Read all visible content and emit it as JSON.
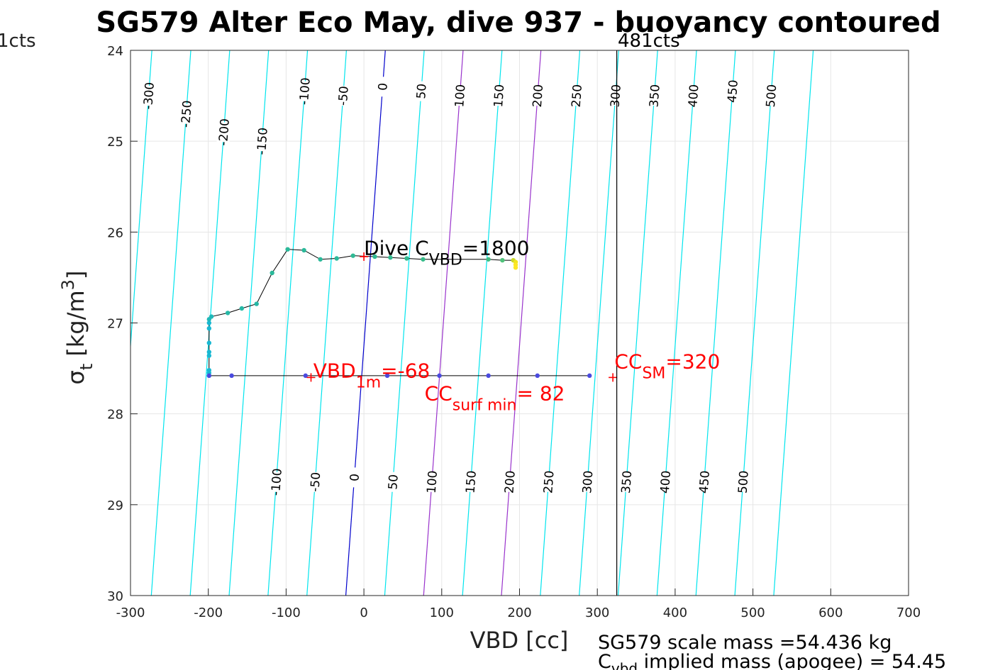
{
  "chart_data": {
    "type": "scatter",
    "title": "SG579 Alter Eco May, dive 937 - buoyancy contoured",
    "xlabel": "VBD [cc]",
    "ylabel": "σ t [kg/m 3]",
    "ylabel_parts": {
      "sym": "σ",
      "sub": "t",
      "unit": " [kg/m",
      "sup": "3",
      "close": "]"
    },
    "xlim": [
      -300,
      700
    ],
    "ylim": [
      24,
      30
    ],
    "y_reversed": true,
    "x_ticks": [
      -300,
      -200,
      -100,
      0,
      100,
      200,
      300,
      400,
      500,
      600,
      700
    ],
    "y_ticks": [
      24,
      25,
      26,
      27,
      28,
      29,
      30
    ],
    "grid": true,
    "contours": {
      "slope": 0.1182,
      "levels": [
        -350,
        -300,
        -250,
        -200,
        -150,
        -100,
        -50,
        0,
        50,
        100,
        150,
        200,
        250,
        300,
        350,
        400,
        450,
        500,
        550
      ],
      "highlight": {
        "0": "#0000cc",
        "100": "#9933cc",
        "200": "#9933cc"
      },
      "default_color": "#00e5ee",
      "top_labels": [
        {
          "level": -300,
          "text": "-300",
          "y": 24.5
        },
        {
          "level": -250,
          "text": "-250",
          "y": 24.7
        },
        {
          "level": -200,
          "text": "-200",
          "y": 24.9
        },
        {
          "level": -150,
          "text": "-150",
          "y": 25.0
        },
        {
          "level": -100,
          "text": "-100",
          "y": 24.45
        },
        {
          "level": -50,
          "text": "-50",
          "y": 24.5
        },
        {
          "level": 0,
          "text": "0",
          "y": 24.4
        },
        {
          "level": 50,
          "text": "50",
          "y": 24.45
        },
        {
          "level": 100,
          "text": "100",
          "y": 24.5
        },
        {
          "level": 150,
          "text": "150",
          "y": 24.5
        },
        {
          "level": 200,
          "text": "200",
          "y": 24.5
        },
        {
          "level": 250,
          "text": "250",
          "y": 24.5
        },
        {
          "level": 300,
          "text": "300",
          "y": 24.5
        },
        {
          "level": 350,
          "text": "350",
          "y": 24.5
        },
        {
          "level": 400,
          "text": "400",
          "y": 24.5
        },
        {
          "level": 450,
          "text": "450",
          "y": 24.45
        },
        {
          "level": 500,
          "text": "500",
          "y": 24.5
        }
      ],
      "bottom_labels": [
        {
          "level": -100,
          "text": "-100",
          "y": 28.75
        },
        {
          "level": -50,
          "text": "-50",
          "y": 28.75
        },
        {
          "level": 0,
          "text": "0",
          "y": 28.7
        },
        {
          "level": 50,
          "text": "50",
          "y": 28.75
        },
        {
          "level": 100,
          "text": "100",
          "y": 28.75
        },
        {
          "level": 150,
          "text": "150",
          "y": 28.75
        },
        {
          "level": 200,
          "text": "200",
          "y": 28.75
        },
        {
          "level": 250,
          "text": "250",
          "y": 28.75
        },
        {
          "level": 300,
          "text": "300",
          "y": 28.75
        },
        {
          "level": 350,
          "text": "350",
          "y": 28.75
        },
        {
          "level": 400,
          "text": "400",
          "y": 28.75
        },
        {
          "level": 450,
          "text": "450",
          "y": 28.75
        },
        {
          "level": 500,
          "text": "500",
          "y": 28.75
        }
      ]
    },
    "profile": {
      "line_color": "#000000",
      "points": [
        {
          "x": -199,
          "y": 27.58,
          "c": "#19b8d2"
        },
        {
          "x": -199,
          "y": 27.55,
          "c": "#19b8d2"
        },
        {
          "x": -199,
          "y": 27.52,
          "c": "#19b8d2"
        },
        {
          "x": -199,
          "y": 27.36,
          "c": "#19b8d2"
        },
        {
          "x": -199,
          "y": 27.32,
          "c": "#19b8d2"
        },
        {
          "x": -199,
          "y": 27.22,
          "c": "#19b8d2"
        },
        {
          "x": -199,
          "y": 27.06,
          "c": "#19b8d2"
        },
        {
          "x": -199,
          "y": 27.0,
          "c": "#19b8d2"
        },
        {
          "x": -199,
          "y": 26.96,
          "c": "#1fb8b8"
        },
        {
          "x": -196,
          "y": 26.93,
          "c": "#1fb8b8"
        },
        {
          "x": -175,
          "y": 26.89,
          "c": "#26b8a6"
        },
        {
          "x": -157,
          "y": 26.84,
          "c": "#26b8a6"
        },
        {
          "x": -138,
          "y": 26.79,
          "c": "#26b8a6"
        },
        {
          "x": -118,
          "y": 26.45,
          "c": "#2bb99a"
        },
        {
          "x": -98,
          "y": 26.19,
          "c": "#2bb99a"
        },
        {
          "x": -77,
          "y": 26.2,
          "c": "#2bb99a"
        },
        {
          "x": -56,
          "y": 26.3,
          "c": "#2bb99a"
        },
        {
          "x": -35,
          "y": 26.29,
          "c": "#2bb99a"
        },
        {
          "x": -14,
          "y": 26.26,
          "c": "#30ba95"
        },
        {
          "x": 14,
          "y": 26.27,
          "c": "#30ba95"
        },
        {
          "x": 34,
          "y": 26.28,
          "c": "#33bb90"
        },
        {
          "x": 55,
          "y": 26.29,
          "c": "#33bb90"
        },
        {
          "x": 76,
          "y": 26.3,
          "c": "#36bc8a"
        },
        {
          "x": 160,
          "y": 26.3,
          "c": "#3fbd82"
        },
        {
          "x": 178,
          "y": 26.31,
          "c": "#4fc27a"
        },
        {
          "x": 192,
          "y": 26.31,
          "c": "#c8d82a"
        },
        {
          "x": 195,
          "y": 26.33,
          "c": "#f1e51d"
        },
        {
          "x": 195,
          "y": 26.36,
          "c": "#fde725"
        },
        {
          "x": 195,
          "y": 26.39,
          "c": "#fde725"
        }
      ],
      "ascent_points": [
        {
          "x": -199,
          "y": 27.58
        },
        {
          "x": -170,
          "y": 27.58
        },
        {
          "x": -75,
          "y": 27.58
        },
        {
          "x": 30,
          "y": 27.58
        },
        {
          "x": 97,
          "y": 27.58
        },
        {
          "x": 160,
          "y": 27.58
        },
        {
          "x": 223,
          "y": 27.58
        },
        {
          "x": 290,
          "y": 27.58
        }
      ],
      "ascent_color": "#4a4adf"
    },
    "markers": [
      {
        "x": 0,
        "y": 26.27,
        "color": "#ff0000",
        "size": 12
      },
      {
        "x": -68,
        "y": 27.6,
        "color": "#ff0000",
        "size": 12
      },
      {
        "x": 320,
        "y": 27.6,
        "color": "#ff0000",
        "size": 12
      }
    ],
    "vertical_line": {
      "x": 325,
      "color": "#000000"
    },
    "annotations": {
      "dive_cvbd": {
        "main": "Dive C",
        "sub": "VBD",
        "tail": "=1800",
        "x": 0,
        "y": 26.25,
        "color": "#000000"
      },
      "vbd_1m": {
        "main": "VBD",
        "sub": "1m",
        "tail": "=-68",
        "x": -65,
        "y": 27.6,
        "color": "#ff0000"
      },
      "cc_surf": {
        "main": "CC",
        "sub": "surf min",
        "tail": "= 82",
        "x": 78,
        "y": 27.85,
        "color": "#ff0000"
      },
      "cc_sm": {
        "main": "CC",
        "sub": "SM",
        "tail": "=320",
        "x": 322,
        "y": 27.5,
        "color": "#ff0000"
      }
    },
    "top_left_label": "1cts",
    "top_right_label": "481cts",
    "footer_line1": "SG579 scale mass =54.436 kg",
    "footer_line2": {
      "main": "C",
      "sub": "vbd",
      "tail": " implied mass (apogee) = 54.45"
    }
  }
}
